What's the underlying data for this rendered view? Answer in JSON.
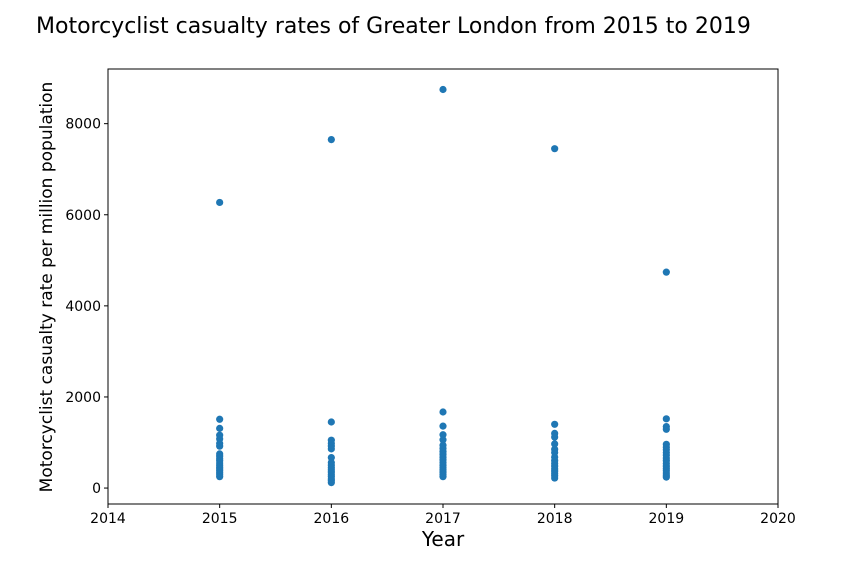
{
  "chart_data": {
    "type": "scatter",
    "title": "Motorcyclist casualty rates of Greater London from 2015 to 2019",
    "xlabel": "Year",
    "ylabel": "Motorcyclist casualty rate per million population",
    "xlim": [
      2014,
      2020
    ],
    "ylim": [
      -350,
      9200
    ],
    "xticks": [
      2014,
      2015,
      2016,
      2017,
      2018,
      2019,
      2020
    ],
    "yticks": [
      0,
      2000,
      4000,
      6000,
      8000
    ],
    "grid": false,
    "legend": "none",
    "marker_color": "#1f77b4",
    "series": [
      {
        "points": [
          [
            2015,
            6270
          ],
          [
            2015,
            1510
          ],
          [
            2015,
            1310
          ],
          [
            2015,
            1160
          ],
          [
            2015,
            1080
          ],
          [
            2015,
            980
          ],
          [
            2015,
            920
          ],
          [
            2015,
            750
          ],
          [
            2015,
            700
          ],
          [
            2015,
            650
          ],
          [
            2015,
            600
          ],
          [
            2015,
            550
          ],
          [
            2015,
            500
          ],
          [
            2015,
            460
          ],
          [
            2015,
            420
          ],
          [
            2015,
            380
          ],
          [
            2015,
            340
          ],
          [
            2015,
            300
          ],
          [
            2015,
            250
          ],
          [
            2016,
            7650
          ],
          [
            2016,
            1450
          ],
          [
            2016,
            1050
          ],
          [
            2016,
            980
          ],
          [
            2016,
            920
          ],
          [
            2016,
            860
          ],
          [
            2016,
            670
          ],
          [
            2016,
            560
          ],
          [
            2016,
            500
          ],
          [
            2016,
            450
          ],
          [
            2016,
            400
          ],
          [
            2016,
            350
          ],
          [
            2016,
            300
          ],
          [
            2016,
            250
          ],
          [
            2016,
            200
          ],
          [
            2016,
            160
          ],
          [
            2016,
            120
          ],
          [
            2017,
            8750
          ],
          [
            2017,
            1670
          ],
          [
            2017,
            1360
          ],
          [
            2017,
            1170
          ],
          [
            2017,
            1060
          ],
          [
            2017,
            940
          ],
          [
            2017,
            870
          ],
          [
            2017,
            800
          ],
          [
            2017,
            740
          ],
          [
            2017,
            680
          ],
          [
            2017,
            620
          ],
          [
            2017,
            560
          ],
          [
            2017,
            500
          ],
          [
            2017,
            450
          ],
          [
            2017,
            400
          ],
          [
            2017,
            350
          ],
          [
            2017,
            300
          ],
          [
            2017,
            250
          ],
          [
            2018,
            7450
          ],
          [
            2018,
            1400
          ],
          [
            2018,
            1200
          ],
          [
            2018,
            1120
          ],
          [
            2018,
            970
          ],
          [
            2018,
            850
          ],
          [
            2018,
            780
          ],
          [
            2018,
            680
          ],
          [
            2018,
            600
          ],
          [
            2018,
            540
          ],
          [
            2018,
            480
          ],
          [
            2018,
            420
          ],
          [
            2018,
            370
          ],
          [
            2018,
            320
          ],
          [
            2018,
            270
          ],
          [
            2018,
            220
          ],
          [
            2019,
            4740
          ],
          [
            2019,
            1520
          ],
          [
            2019,
            1350
          ],
          [
            2019,
            1290
          ],
          [
            2019,
            960
          ],
          [
            2019,
            900
          ],
          [
            2019,
            840
          ],
          [
            2019,
            780
          ],
          [
            2019,
            720
          ],
          [
            2019,
            660
          ],
          [
            2019,
            600
          ],
          [
            2019,
            540
          ],
          [
            2019,
            480
          ],
          [
            2019,
            430
          ],
          [
            2019,
            380
          ],
          [
            2019,
            330
          ],
          [
            2019,
            280
          ],
          [
            2019,
            240
          ]
        ]
      }
    ]
  }
}
